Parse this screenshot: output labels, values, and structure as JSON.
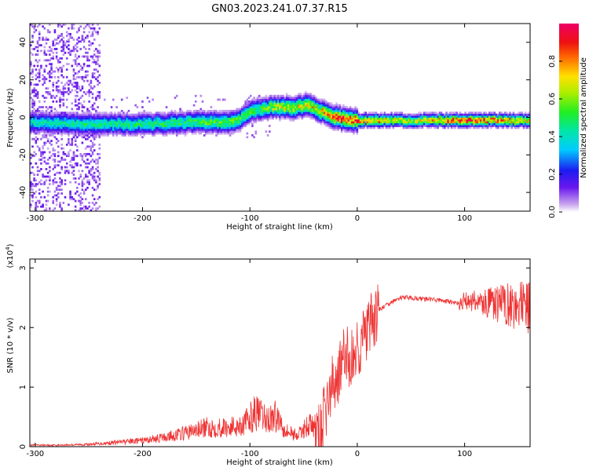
{
  "title": "GN03.2023.241.07.37.R15",
  "chart_data": [
    {
      "type": "heatmap",
      "xlabel": "Height of straight line (km)",
      "ylabel": "Frequency (Hz)",
      "xlim": [
        -305,
        161
      ],
      "ylim": [
        -50,
        50
      ],
      "x_ticks": [
        -300,
        -200,
        -100,
        0,
        100
      ],
      "y_ticks": [
        -40,
        -20,
        0,
        20,
        40
      ],
      "colorbar": {
        "label": "Normalized spectral amplitude",
        "range": [
          0,
          1
        ],
        "ticks": [
          0.0,
          0.2,
          0.4,
          0.6,
          0.8
        ]
      },
      "ridge": {
        "description": "frequency of peak amplitude vs height",
        "x": [
          -305,
          -250,
          -200,
          -150,
          -115,
          -100,
          -80,
          -60,
          -45,
          -35,
          -25,
          -15,
          0,
          50,
          100,
          161
        ],
        "y": [
          -3,
          -4,
          -4,
          -3,
          -3,
          3,
          5,
          5,
          6,
          3,
          0,
          -1,
          -2,
          -2,
          -2,
          -2
        ],
        "amplitude": [
          0.4,
          0.45,
          0.45,
          0.5,
          0.55,
          0.5,
          0.6,
          0.65,
          0.7,
          0.7,
          0.8,
          0.85,
          0.85,
          0.6,
          0.9,
          0.7
        ]
      }
    },
    {
      "type": "line",
      "xlabel": "Height of straight line (km)",
      "ylabel": "SNR (10 * v/v)",
      "y_multiplier": "(x10",
      "y_multiplier_exp": "4",
      "y_multiplier_close": ")",
      "xlim": [
        -305,
        161
      ],
      "ylim": [
        0,
        3.15
      ],
      "x_ticks": [
        -300,
        -200,
        -100,
        0,
        100
      ],
      "y_ticks": [
        0,
        1,
        2,
        3
      ],
      "color": "#ee3333",
      "series": [
        {
          "x": [
            -305,
            -280,
            -250,
            -220,
            -200,
            -180,
            -160,
            -140,
            -120,
            -105,
            -95,
            -85,
            -75,
            -65,
            -55,
            -45,
            -35,
            -28,
            -20,
            -15,
            -10,
            -5,
            0,
            10,
            20,
            30,
            40,
            50,
            60,
            70,
            80,
            90,
            95,
            100,
            110,
            120,
            130,
            140,
            150,
            161
          ],
          "y": [
            0.02,
            0.02,
            0.03,
            0.06,
            0.08,
            0.12,
            0.18,
            0.25,
            0.25,
            0.3,
            0.45,
            0.35,
            0.4,
            0.2,
            0.15,
            0.3,
            0.2,
            0.8,
            1.2,
            1.4,
            1.6,
            1.5,
            1.7,
            2.0,
            2.3,
            2.4,
            2.5,
            2.5,
            2.48,
            2.47,
            2.45,
            2.42,
            2.4,
            2.45,
            2.45,
            2.4,
            2.4,
            2.4,
            2.35,
            2.3
          ]
        }
      ]
    }
  ]
}
